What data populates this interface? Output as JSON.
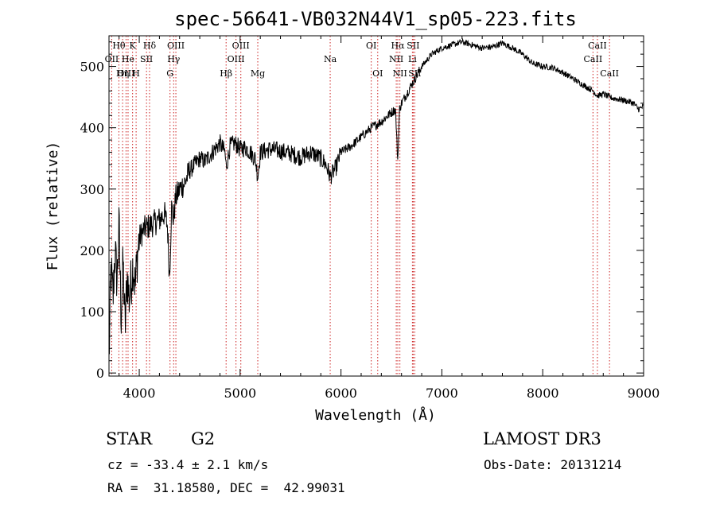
{
  "chart_data": {
    "type": "line",
    "title": "spec-56641-VB032N44V1_sp05-223.fits",
    "xlabel": "Wavelength (Å)",
    "ylabel": "Flux (relative)",
    "xlim": [
      3700,
      9000
    ],
    "ylim": [
      -5,
      550
    ],
    "xticks": [
      4000,
      5000,
      6000,
      7000,
      8000,
      9000
    ],
    "yticks": [
      0,
      100,
      200,
      300,
      400,
      500
    ],
    "grid": false,
    "series": [
      {
        "name": "spectrum",
        "x": [
          3700,
          3720,
          3740,
          3760,
          3780,
          3800,
          3820,
          3840,
          3860,
          3880,
          3900,
          3920,
          3940,
          3960,
          3980,
          4000,
          4050,
          4100,
          4150,
          4200,
          4250,
          4280,
          4300,
          4320,
          4340,
          4360,
          4400,
          4450,
          4500,
          4550,
          4600,
          4650,
          4700,
          4750,
          4800,
          4850,
          4861,
          4900,
          4950,
          5000,
          5050,
          5100,
          5150,
          5175,
          5200,
          5300,
          5400,
          5500,
          5600,
          5700,
          5800,
          5850,
          5893,
          5950,
          6000,
          6100,
          6200,
          6300,
          6400,
          6500,
          6540,
          6563,
          6580,
          6600,
          6700,
          6800,
          6900,
          7000,
          7100,
          7200,
          7300,
          7400,
          7500,
          7600,
          7700,
          7800,
          7900,
          8000,
          8100,
          8200,
          8300,
          8400,
          8500,
          8542,
          8600,
          8662,
          8700,
          8800,
          8900,
          8950,
          9000
        ],
        "y": [
          20,
          170,
          120,
          200,
          150,
          240,
          90,
          180,
          70,
          160,
          120,
          150,
          180,
          140,
          190,
          220,
          235,
          240,
          245,
          250,
          260,
          240,
          155,
          270,
          250,
          285,
          300,
          310,
          330,
          340,
          350,
          345,
          355,
          365,
          375,
          360,
          335,
          370,
          375,
          365,
          368,
          360,
          350,
          320,
          360,
          365,
          362,
          358,
          352,
          360,
          350,
          340,
          320,
          335,
          360,
          370,
          385,
          400,
          410,
          425,
          430,
          345,
          430,
          440,
          470,
          500,
          520,
          530,
          535,
          540,
          535,
          530,
          532,
          538,
          530,
          520,
          505,
          500,
          498,
          490,
          480,
          470,
          460,
          452,
          455,
          450,
          448,
          445,
          440,
          430,
          435
        ]
      }
    ],
    "lines": [
      {
        "label": "Hθ",
        "x": 3798,
        "row": 0
      },
      {
        "label": "OII",
        "x": 3727,
        "row": 1
      },
      {
        "label": "OIII",
        "x": 3869,
        "row": 2
      },
      {
        "label": "He",
        "x": 3889,
        "row": 1
      },
      {
        "label": "Hη",
        "x": 3835,
        "row": 2
      },
      {
        "label": "K",
        "x": 3934,
        "row": 0
      },
      {
        "label": "H",
        "x": 3969,
        "row": 2
      },
      {
        "label": "Hδ",
        "x": 4102,
        "row": 0
      },
      {
        "label": "SII",
        "x": 4072,
        "row": 1
      },
      {
        "label": "OIII",
        "x": 4363,
        "row": 0
      },
      {
        "label": "Hγ",
        "x": 4341,
        "row": 1
      },
      {
        "label": "G",
        "x": 4305,
        "row": 2
      },
      {
        "label": "Hβ",
        "x": 4861,
        "row": 2
      },
      {
        "label": "OIII",
        "x": 5007,
        "row": 0
      },
      {
        "label": "OIII",
        "x": 4959,
        "row": 1
      },
      {
        "label": "Mg",
        "x": 5175,
        "row": 2
      },
      {
        "label": "Na",
        "x": 5893,
        "row": 1
      },
      {
        "label": "OI",
        "x": 6300,
        "row": 0
      },
      {
        "label": "OI",
        "x": 6364,
        "row": 2
      },
      {
        "label": "Hα",
        "x": 6563,
        "row": 0
      },
      {
        "label": "SII",
        "x": 6716,
        "row": 0
      },
      {
        "label": "NII",
        "x": 6548,
        "row": 1
      },
      {
        "label": "Li",
        "x": 6708,
        "row": 1
      },
      {
        "label": "NII",
        "x": 6584,
        "row": 2
      },
      {
        "label": "SII",
        "x": 6731,
        "row": 2
      },
      {
        "label": "CaII",
        "x": 8542,
        "row": 0
      },
      {
        "label": "CaII",
        "x": 8498,
        "row": 1
      },
      {
        "label": "CaII",
        "x": 8662,
        "row": 2
      }
    ]
  },
  "info": {
    "object_class": "STAR",
    "subclass": "G2",
    "survey": "LAMOST DR3",
    "cz": "cz = -33.4 ± 2.1 km/s",
    "obs_date": "Obs-Date: 20131214",
    "coords": "RA =  31.18580, DEC =  42.99031"
  }
}
